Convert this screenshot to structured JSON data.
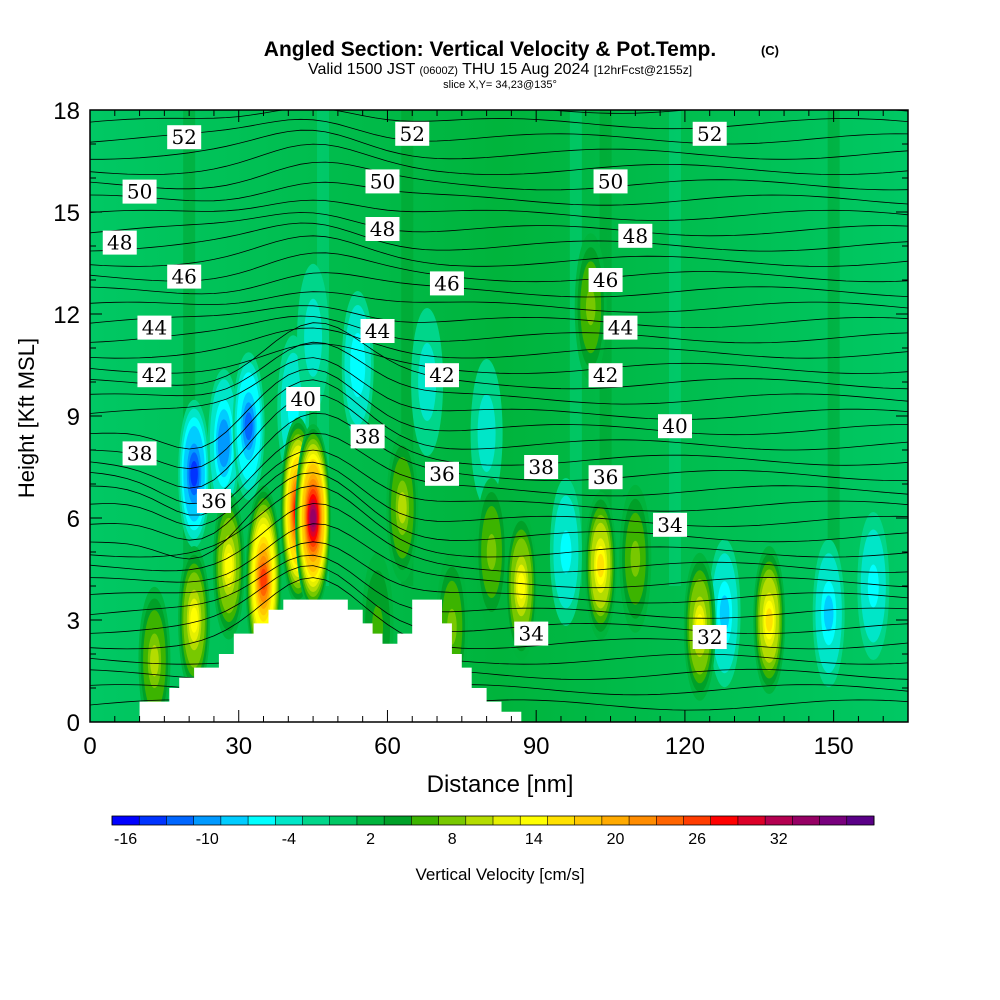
{
  "chart_data": {
    "type": "heatmap",
    "title": "Angled Section: Vertical Velocity & Pot.Temp.",
    "title_mark": "(C)",
    "subtitle_main": "Valid 1500 JST",
    "subtitle_utc": "(0600Z)",
    "subtitle_date": "THU 15 Aug 2024",
    "subtitle_fcst": "[12hrFcst@2155z]",
    "slice_label": "slice X,Y= 34,23@135°",
    "xlabel": "Distance [nm]",
    "ylabel": "Height [Kft MSL]",
    "xlim": [
      0,
      165
    ],
    "ylim": [
      0,
      18
    ],
    "x_ticks": [
      0,
      30,
      60,
      90,
      120,
      150
    ],
    "y_ticks": [
      0,
      3,
      6,
      9,
      12,
      15,
      18
    ],
    "x_tick_labels": [
      "0",
      "30",
      "60",
      "90",
      "120",
      "150"
    ],
    "y_tick_labels": [
      "0",
      "3",
      "6",
      "9",
      "12",
      "15",
      "18"
    ],
    "colorbar": {
      "label": "Vertical Velocity [cm/s]",
      "tick_labels": [
        "-16",
        "-10",
        "-4",
        "2",
        "8",
        "14",
        "20",
        "26",
        "32"
      ],
      "colors": [
        "#0000ff",
        "#0033ff",
        "#0066ff",
        "#0099ff",
        "#00ccff",
        "#00ffff",
        "#00e6c8",
        "#00d68a",
        "#00c864",
        "#00b43c",
        "#00a028",
        "#3cb400",
        "#78c800",
        "#b4dc00",
        "#e6f000",
        "#ffff00",
        "#ffe100",
        "#ffc800",
        "#ffaa00",
        "#ff8c00",
        "#ff6400",
        "#ff3c00",
        "#ff0000",
        "#dc0028",
        "#b40050",
        "#960064",
        "#78007d",
        "#5a0087"
      ]
    },
    "theta_contour_labels": [
      {
        "text": "52",
        "x": 19,
        "z": 17.2
      },
      {
        "text": "52",
        "x": 65,
        "z": 17.3
      },
      {
        "text": "52",
        "x": 125,
        "z": 17.3
      },
      {
        "text": "50",
        "x": 10,
        "z": 15.6
      },
      {
        "text": "50",
        "x": 59,
        "z": 15.9
      },
      {
        "text": "50",
        "x": 105,
        "z": 15.9
      },
      {
        "text": "48",
        "x": 6,
        "z": 14.1
      },
      {
        "text": "48",
        "x": 59,
        "z": 14.5
      },
      {
        "text": "48",
        "x": 110,
        "z": 14.3
      },
      {
        "text": "46",
        "x": 19,
        "z": 13.1
      },
      {
        "text": "46",
        "x": 72,
        "z": 12.9
      },
      {
        "text": "46",
        "x": 104,
        "z": 13.0
      },
      {
        "text": "44",
        "x": 13,
        "z": 11.6
      },
      {
        "text": "44",
        "x": 58,
        "z": 11.5
      },
      {
        "text": "44",
        "x": 107,
        "z": 11.6
      },
      {
        "text": "42",
        "x": 13,
        "z": 10.2
      },
      {
        "text": "42",
        "x": 71,
        "z": 10.2
      },
      {
        "text": "42",
        "x": 104,
        "z": 10.2
      },
      {
        "text": "40",
        "x": 43,
        "z": 9.5
      },
      {
        "text": "40",
        "x": 118,
        "z": 8.7
      },
      {
        "text": "38",
        "x": 10,
        "z": 7.9
      },
      {
        "text": "38",
        "x": 56,
        "z": 8.4
      },
      {
        "text": "38",
        "x": 91,
        "z": 7.5
      },
      {
        "text": "36",
        "x": 25,
        "z": 6.5
      },
      {
        "text": "36",
        "x": 71,
        "z": 7.3
      },
      {
        "text": "36",
        "x": 104,
        "z": 7.2
      },
      {
        "text": "34",
        "x": 117,
        "z": 5.8
      },
      {
        "text": "34",
        "x": 89,
        "z": 2.6
      },
      {
        "text": "32",
        "x": 125,
        "z": 2.5
      }
    ],
    "terrain_profile": [
      [
        10,
        0.6
      ],
      [
        16,
        0.6
      ],
      [
        16,
        1.0
      ],
      [
        18,
        1.0
      ],
      [
        18,
        1.3
      ],
      [
        21,
        1.3
      ],
      [
        21,
        1.6
      ],
      [
        26,
        1.6
      ],
      [
        26,
        2.0
      ],
      [
        29,
        2.0
      ],
      [
        29,
        2.6
      ],
      [
        33,
        2.6
      ],
      [
        33,
        2.9
      ],
      [
        36,
        2.9
      ],
      [
        36,
        3.3
      ],
      [
        39,
        3.3
      ],
      [
        39,
        3.6
      ],
      [
        52,
        3.6
      ],
      [
        52,
        3.3
      ],
      [
        55,
        3.3
      ],
      [
        55,
        2.9
      ],
      [
        57,
        2.9
      ],
      [
        57,
        2.6
      ],
      [
        59,
        2.6
      ],
      [
        59,
        2.3
      ],
      [
        62,
        2.3
      ],
      [
        62,
        2.6
      ],
      [
        65,
        2.6
      ],
      [
        65,
        3.6
      ],
      [
        71,
        3.6
      ],
      [
        71,
        2.9
      ],
      [
        73,
        2.9
      ],
      [
        73,
        2.0
      ],
      [
        75,
        2.0
      ],
      [
        75,
        1.6
      ],
      [
        77,
        1.6
      ],
      [
        77,
        1.0
      ],
      [
        80,
        1.0
      ],
      [
        80,
        0.6
      ],
      [
        83,
        0.6
      ],
      [
        83,
        0.3
      ],
      [
        87,
        0.3
      ]
    ],
    "updraft_cores": [
      {
        "x": 13,
        "z": 1.8,
        "w": 10
      },
      {
        "x": 21,
        "z": 3.0,
        "w": 14
      },
      {
        "x": 28,
        "z": 4.6,
        "w": 14
      },
      {
        "x": 35,
        "z": 4.2,
        "w": 26
      },
      {
        "x": 42,
        "z": 6.2,
        "w": 30
      },
      {
        "x": 45,
        "z": 6.0,
        "w": 34
      },
      {
        "x": 58,
        "z": 2.8,
        "w": 5
      },
      {
        "x": 63,
        "z": 6.3,
        "w": 10
      },
      {
        "x": 73,
        "z": 2.8,
        "w": 8
      },
      {
        "x": 81,
        "z": 5.0,
        "w": 8
      },
      {
        "x": 87,
        "z": 4.0,
        "w": 14
      },
      {
        "x": 103,
        "z": 4.6,
        "w": 16
      },
      {
        "x": 110,
        "z": 4.8,
        "w": 8
      },
      {
        "x": 123,
        "z": 2.8,
        "w": 14
      },
      {
        "x": 137,
        "z": 3.0,
        "w": 16
      },
      {
        "x": 101,
        "z": 12.2,
        "w": 8
      }
    ],
    "downdraft_cores": [
      {
        "x": 21,
        "z": 7.3,
        "w": -14
      },
      {
        "x": 27,
        "z": 8.2,
        "w": -11
      },
      {
        "x": 32,
        "z": 8.7,
        "w": -12
      },
      {
        "x": 41,
        "z": 9.2,
        "w": -6
      },
      {
        "x": 45,
        "z": 11.3,
        "w": -5
      },
      {
        "x": 54,
        "z": 10.5,
        "w": -7
      },
      {
        "x": 68,
        "z": 10.0,
        "w": -5
      },
      {
        "x": 80,
        "z": 8.5,
        "w": -5
      },
      {
        "x": 96,
        "z": 5.0,
        "w": -6
      },
      {
        "x": 128,
        "z": 3.2,
        "w": -8
      },
      {
        "x": 149,
        "z": 3.2,
        "w": -8
      },
      {
        "x": 158,
        "z": 4.0,
        "w": -6
      }
    ]
  }
}
